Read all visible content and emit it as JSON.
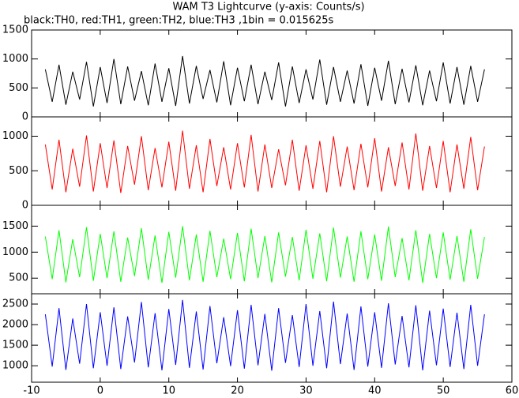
{
  "chart_data": [
    {
      "type": "line",
      "title": "WAM T3 Lightcurve (y-axis: Counts/s)",
      "subtitle": "black:TH0, red:TH1, green:TH2, blue:TH3 ,1bin = 0.015625s",
      "x": [
        -8,
        -7,
        -6,
        -5,
        -4,
        -3,
        -2,
        -1,
        0,
        1,
        2,
        3,
        4,
        5,
        6,
        7,
        8,
        9,
        10,
        11,
        12,
        13,
        14,
        15,
        16,
        17,
        18,
        19,
        20,
        21,
        22,
        23,
        24,
        25,
        26,
        27,
        28,
        29,
        30,
        31,
        32,
        33,
        34,
        35,
        36,
        37,
        38,
        39,
        40,
        41,
        42,
        43,
        44,
        45,
        46,
        47,
        48,
        49,
        50,
        51,
        52,
        53,
        54,
        55,
        56
      ],
      "xlim": [
        -10,
        60
      ],
      "ylim": [
        0,
        1500
      ],
      "yticks": [
        0,
        500,
        1000,
        1500
      ],
      "series": [
        {
          "color": "#000000",
          "values": [
            820,
            260,
            900,
            210,
            780,
            300,
            950,
            180,
            860,
            240,
            1000,
            220,
            870,
            280,
            790,
            200,
            920,
            260,
            840,
            190,
            1050,
            230,
            880,
            310,
            810,
            250,
            960,
            200,
            850,
            270,
            900,
            220,
            780,
            290,
            940,
            180,
            870,
            240,
            820,
            300,
            990,
            210,
            860,
            260,
            800,
            230,
            910,
            190,
            850,
            280,
            970,
            220,
            830,
            250,
            890,
            200,
            800,
            270,
            940,
            230,
            860,
            210,
            880,
            260,
            820
          ]
        }
      ]
    },
    {
      "type": "line",
      "x": [
        -8,
        -7,
        -6,
        -5,
        -4,
        -3,
        -2,
        -1,
        0,
        1,
        2,
        3,
        4,
        5,
        6,
        7,
        8,
        9,
        10,
        11,
        12,
        13,
        14,
        15,
        16,
        17,
        18,
        19,
        20,
        21,
        22,
        23,
        24,
        25,
        26,
        27,
        28,
        29,
        30,
        31,
        32,
        33,
        34,
        35,
        36,
        37,
        38,
        39,
        40,
        41,
        42,
        43,
        44,
        45,
        46,
        47,
        48,
        49,
        50,
        51,
        52,
        53,
        54,
        55,
        56
      ],
      "xlim": [
        -10,
        60
      ],
      "ylim": [
        0,
        1280
      ],
      "yticks": [
        0,
        500,
        1000
      ],
      "series": [
        {
          "color": "#ff0000",
          "values": [
            880,
            230,
            950,
            190,
            820,
            270,
            1010,
            200,
            900,
            250,
            940,
            180,
            860,
            300,
            1000,
            220,
            830,
            260,
            920,
            210,
            1080,
            240,
            870,
            190,
            960,
            280,
            840,
            230,
            900,
            260,
            1020,
            200,
            880,
            250,
            810,
            290,
            950,
            210,
            870,
            240,
            930,
            190,
            1000,
            270,
            850,
            220,
            890,
            260,
            970,
            200,
            840,
            280,
            910,
            230,
            1040,
            210,
            860,
            250,
            930,
            190,
            880,
            240,
            990,
            220,
            850
          ]
        }
      ]
    },
    {
      "type": "line",
      "x": [
        -8,
        -7,
        -6,
        -5,
        -4,
        -3,
        -2,
        -1,
        0,
        1,
        2,
        3,
        4,
        5,
        6,
        7,
        8,
        9,
        10,
        11,
        12,
        13,
        14,
        15,
        16,
        17,
        18,
        19,
        20,
        21,
        22,
        23,
        24,
        25,
        26,
        27,
        28,
        29,
        30,
        31,
        32,
        33,
        34,
        35,
        36,
        37,
        38,
        39,
        40,
        41,
        42,
        43,
        44,
        45,
        46,
        47,
        48,
        49,
        50,
        51,
        52,
        53,
        54,
        55,
        56
      ],
      "xlim": [
        -10,
        60
      ],
      "ylim": [
        200,
        1900
      ],
      "yticks": [
        500,
        1000,
        1500
      ],
      "series": [
        {
          "color": "#00ff00",
          "values": [
            1300,
            480,
            1420,
            420,
            1250,
            520,
            1480,
            450,
            1350,
            500,
            1400,
            430,
            1280,
            540,
            1460,
            470,
            1320,
            410,
            1390,
            510,
            1500,
            460,
            1340,
            430,
            1410,
            520,
            1260,
            480,
            1370,
            440,
            1450,
            500,
            1310,
            420,
            1380,
            530,
            1290,
            460,
            1430,
            490,
            1360,
            440,
            1470,
            510,
            1300,
            430,
            1400,
            480,
            1340,
            450,
            1490,
            520,
            1270,
            460,
            1420,
            410,
            1350,
            500,
            1380,
            470,
            1310,
            430,
            1440,
            490,
            1290
          ]
        }
      ]
    },
    {
      "type": "line",
      "x": [
        -8,
        -7,
        -6,
        -5,
        -4,
        -3,
        -2,
        -1,
        0,
        1,
        2,
        3,
        4,
        5,
        6,
        7,
        8,
        9,
        10,
        11,
        12,
        13,
        14,
        15,
        16,
        17,
        18,
        19,
        20,
        21,
        22,
        23,
        24,
        25,
        26,
        27,
        28,
        29,
        30,
        31,
        32,
        33,
        34,
        35,
        36,
        37,
        38,
        39,
        40,
        41,
        42,
        43,
        44,
        45,
        46,
        47,
        48,
        49,
        50,
        51,
        52,
        53,
        54,
        55,
        56
      ],
      "xlim": [
        -10,
        60
      ],
      "ylim": [
        600,
        2750
      ],
      "yticks": [
        1000,
        1500,
        2000,
        2500
      ],
      "xticks": [
        -10,
        0,
        10,
        20,
        30,
        40,
        50,
        60
      ],
      "series": [
        {
          "color": "#0000ff",
          "values": [
            2250,
            980,
            2400,
            900,
            2150,
            1050,
            2500,
            940,
            2300,
            1000,
            2420,
            920,
            2200,
            1080,
            2550,
            960,
            2280,
            890,
            2380,
            1020,
            2600,
            950,
            2320,
            910,
            2450,
            1060,
            2180,
            990,
            2350,
            930,
            2480,
            1010,
            2260,
            880,
            2400,
            1070,
            2230,
            970,
            2500,
            1000,
            2330,
            940,
            2560,
            1040,
            2270,
            900,
            2440,
            980,
            2300,
            950,
            2520,
            1030,
            2210,
            960,
            2470,
            890,
            2340,
            1010,
            2390,
            970,
            2290,
            920,
            2480,
            1000,
            2250
          ]
        }
      ]
    }
  ]
}
